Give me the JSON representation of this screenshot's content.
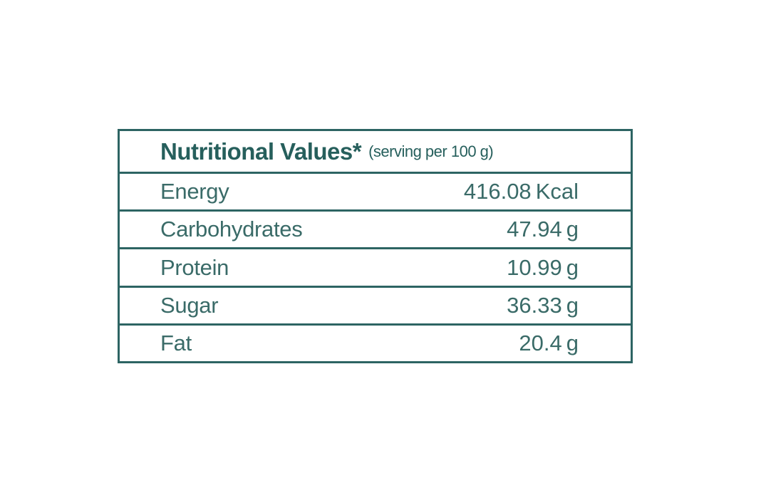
{
  "table": {
    "title": "Nutritional Values*",
    "serving_note": "(serving per 100 g)",
    "rows": [
      {
        "label": "Energy",
        "value": "416.08",
        "unit": "Kcal"
      },
      {
        "label": "Carbohydrates",
        "value": "47.94",
        "unit": "g"
      },
      {
        "label": "Protein",
        "value": "10.99",
        "unit": "g"
      },
      {
        "label": "Sugar",
        "value": "36.33",
        "unit": "g"
      },
      {
        "label": "Fat",
        "value": "20.4",
        "unit": "g"
      }
    ],
    "colors": {
      "border": "#2d6463",
      "text": "#3a6b68",
      "header_text": "#265f5c",
      "background": "#ffffff"
    }
  }
}
